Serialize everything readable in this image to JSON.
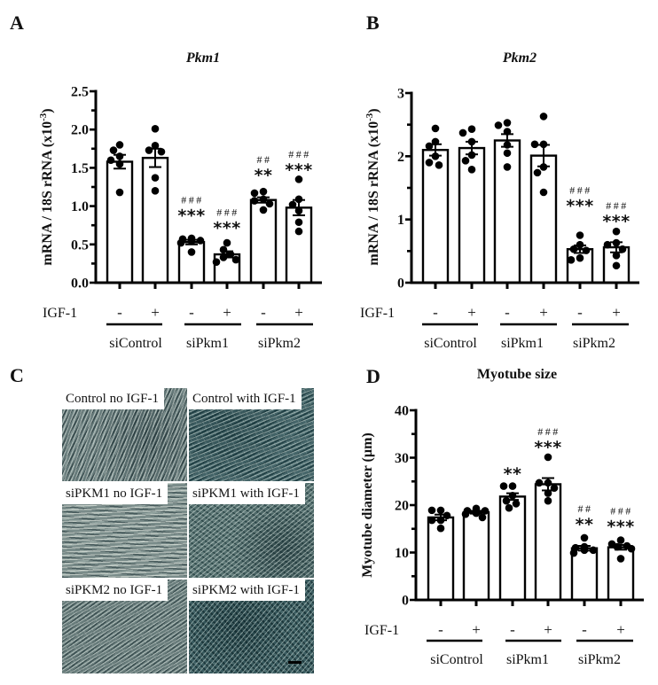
{
  "figure": {
    "panel_c": {
      "letter": "C",
      "images": [
        {
          "label": "Control no IGF-1"
        },
        {
          "label": "Control with IGF-1"
        },
        {
          "label": "siPKM1 no IGF-1"
        },
        {
          "label": "siPKM1 with IGF-1"
        },
        {
          "label": "siPKM2 no IGF-1"
        },
        {
          "label": "siPKM2 with IGF-1",
          "scale_bar": true
        }
      ]
    }
  },
  "chart_data": [
    {
      "panel_letter": "A",
      "type": "bar",
      "title": "Pkm1",
      "xlabel": "",
      "ylabel": "mRNA / 18S rRNA (x10",
      "ylabel_superscript": "-3",
      "ylabel_end": ")",
      "ylim": [
        0,
        2.5
      ],
      "yticks": [
        0,
        0.5,
        1.0,
        1.5,
        2.0,
        2.5
      ],
      "ytick_labels": [
        "0.0",
        "0.5",
        "1.0",
        "1.5",
        "2.0",
        "2.5"
      ],
      "minor_tick_step": 0.25,
      "grid": false,
      "legend": null,
      "factor_label": "IGF-1",
      "igf1": [
        "-",
        "+",
        "-",
        "+",
        "-",
        "+"
      ],
      "groups": [
        "siControl",
        "siPkm1",
        "siPkm2"
      ],
      "categories": [
        "siControl IGF-1 -",
        "siControl IGF-1 +",
        "siPkm1 IGF-1 -",
        "siPkm1 IGF-1 +",
        "siPkm2 IGF-1 -",
        "siPkm2 IGF-1 +"
      ],
      "values": [
        1.58,
        1.63,
        0.53,
        0.37,
        1.08,
        0.98
      ],
      "sem": [
        0.09,
        0.12,
        0.03,
        0.04,
        0.035,
        0.1
      ],
      "points": [
        [
          1.8,
          1.73,
          1.65,
          1.6,
          1.55,
          1.18
        ],
        [
          2.01,
          1.79,
          1.73,
          1.71,
          1.37,
          1.2
        ],
        [
          0.58,
          0.57,
          0.55,
          0.54,
          0.52,
          0.4
        ],
        [
          0.52,
          0.43,
          0.37,
          0.33,
          0.3,
          0.27
        ],
        [
          1.19,
          1.17,
          1.09,
          1.07,
          1.03,
          0.95
        ],
        [
          1.35,
          1.09,
          1.02,
          0.94,
          0.79,
          0.67
        ]
      ],
      "annotations": [
        {
          "index": 2,
          "stars": "***",
          "hashes": "###",
          "y": 0.93
        },
        {
          "index": 3,
          "stars": "***",
          "hashes": "###",
          "y": 0.77
        },
        {
          "index": 4,
          "stars": "**",
          "hashes": "##",
          "y": 1.46
        },
        {
          "index": 5,
          "stars": "***",
          "hashes": "###",
          "y": 1.53
        }
      ]
    },
    {
      "panel_letter": "B",
      "type": "bar",
      "title": "Pkm2",
      "xlabel": "",
      "ylabel": "mRNA / 18S rRNA (x10",
      "ylabel_superscript": "-3",
      "ylabel_end": ")",
      "ylim": [
        0,
        3
      ],
      "yticks": [
        0,
        1,
        2,
        3
      ],
      "ytick_labels": [
        "0",
        "1",
        "2",
        "3"
      ],
      "minor_tick_step": 0.5,
      "grid": false,
      "legend": null,
      "factor_label": "IGF-1",
      "igf1": [
        "-",
        "+",
        "-",
        "+",
        "-",
        "+"
      ],
      "groups": [
        "siControl",
        "siPkm1",
        "siPkm2"
      ],
      "categories": [
        "siControl IGF-1 -",
        "siControl IGF-1 +",
        "siPkm1 IGF-1 -",
        "siPkm1 IGF-1 +",
        "siPkm2 IGF-1 -",
        "siPkm2 IGF-1 +"
      ],
      "values": [
        2.1,
        2.13,
        2.25,
        2.01,
        0.53,
        0.56
      ],
      "sem": [
        0.09,
        0.1,
        0.1,
        0.17,
        0.06,
        0.08
      ],
      "points": [
        [
          2.44,
          2.23,
          2.16,
          2.0,
          1.9,
          1.86
        ],
        [
          2.43,
          2.37,
          2.23,
          2.02,
          1.93,
          1.79
        ],
        [
          2.53,
          2.49,
          2.39,
          2.18,
          2.05,
          1.83
        ],
        [
          2.63,
          2.19,
          2.19,
          1.83,
          1.74,
          1.43
        ],
        [
          0.75,
          0.6,
          0.53,
          0.51,
          0.39,
          0.36
        ],
        [
          0.81,
          0.63,
          0.6,
          0.53,
          0.43,
          0.27
        ]
      ],
      "annotations": [
        {
          "index": 4,
          "stars": "***",
          "hashes": "###",
          "y": 1.28
        },
        {
          "index": 5,
          "stars": "***",
          "hashes": "###",
          "y": 1.04
        }
      ]
    },
    {
      "panel_letter": "D",
      "type": "bar",
      "title": "Myotube size",
      "xlabel": "",
      "ylabel": "Myotube diameter (µm)",
      "ylim": [
        0,
        40
      ],
      "yticks": [
        0,
        10,
        20,
        30,
        40
      ],
      "ytick_labels": [
        "0",
        "10",
        "20",
        "30",
        "40"
      ],
      "minor_tick_step": 5,
      "grid": false,
      "legend": null,
      "factor_label": "IGF-1",
      "igf1": [
        "-",
        "+",
        "-",
        "+",
        "-",
        "+"
      ],
      "groups": [
        "siControl",
        "siPkm1",
        "siPkm2"
      ],
      "categories": [
        "siControl IGF-1 -",
        "siControl IGF-1 +",
        "siPkm1 IGF-1 -",
        "siPkm1 IGF-1 +",
        "siPkm2 IGF-1 -",
        "siPkm2 IGF-1 +"
      ],
      "values": [
        17.4,
        18.5,
        21.8,
        24.4,
        10.9,
        11.1
      ],
      "sem": [
        0.6,
        0.3,
        0.7,
        1.3,
        0.5,
        0.5
      ],
      "points": [
        [
          18.9,
          18.9,
          17.8,
          16.8,
          16.8,
          15.1
        ],
        [
          19.3,
          18.8,
          18.8,
          18.3,
          18.1,
          17.4
        ],
        [
          24.0,
          24.0,
          22.0,
          20.9,
          20.3,
          19.4
        ],
        [
          30.1,
          24.7,
          24.7,
          23.6,
          22.5,
          20.9
        ],
        [
          13.1,
          11.2,
          11.0,
          10.5,
          10.5,
          9.9
        ],
        [
          12.6,
          11.8,
          11.4,
          11.2,
          10.8,
          8.7
        ]
      ],
      "annotations": [
        {
          "index": 2,
          "stars": "**",
          "hashes": "",
          "y": 27.5
        },
        {
          "index": 3,
          "stars": "***",
          "hashes": "###",
          "y": 33.1
        },
        {
          "index": 4,
          "stars": "**",
          "hashes": "##",
          "y": 16.8
        },
        {
          "index": 5,
          "stars": "***",
          "hashes": "###",
          "y": 16.4
        }
      ]
    }
  ]
}
